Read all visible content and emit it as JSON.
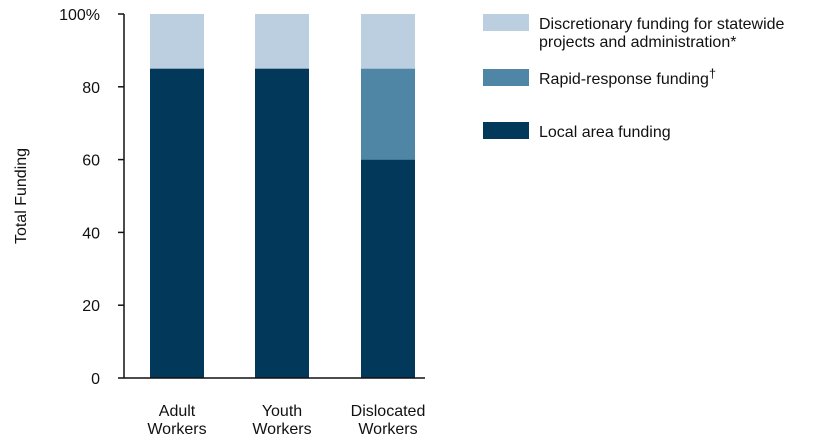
{
  "chart_data": {
    "type": "bar",
    "stacked": true,
    "title": "",
    "xlabel": "",
    "ylabel": "Total Funding",
    "ylim": [
      0,
      100
    ],
    "yticks": [
      "0",
      "20",
      "40",
      "60",
      "80",
      "100%"
    ],
    "y_tick_values": [
      0,
      20,
      40,
      60,
      80,
      100
    ],
    "categories": [
      [
        "Adult",
        "Workers"
      ],
      [
        "Youth",
        "Workers"
      ],
      [
        "Dislocated",
        "Workers"
      ]
    ],
    "series": [
      {
        "name": "Local area funding",
        "values": [
          85,
          85,
          60
        ],
        "color": "#02385a"
      },
      {
        "name": "Rapid-response funding",
        "name_suffix": "†",
        "values": [
          0,
          0,
          25
        ],
        "color": "#4f86a6"
      },
      {
        "name_lines": [
          "Discretionary funding for statewide",
          "projects and administration*"
        ],
        "values": [
          15,
          15,
          15
        ],
        "color": "#bccfe0"
      }
    ],
    "legend": {
      "placement": "top-right",
      "order": [
        2,
        1,
        0
      ]
    },
    "grid": false
  }
}
